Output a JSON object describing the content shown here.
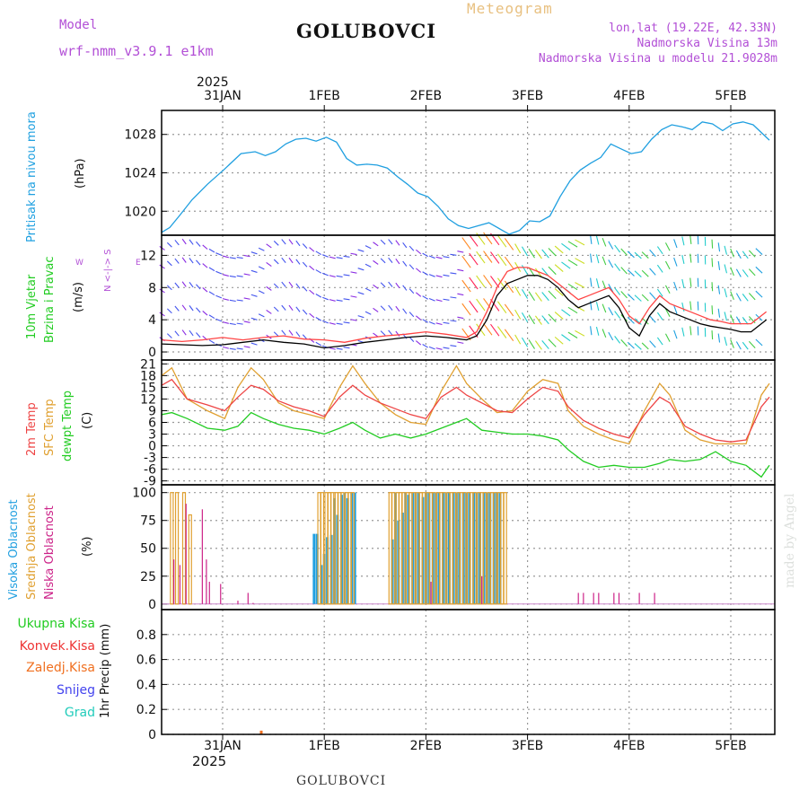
{
  "header": {
    "model_label": "Model",
    "model_name": "wrf-nmm_v3.9.1  e1km",
    "station": "GOLUBOVCI",
    "product": "Meteogram",
    "lonlat": "lon,lat (19.22E, 42.33N)",
    "altitude": "Nadmorska Visina 13m",
    "model_altitude": "Nadmorska Visina u modelu 21.9028m"
  },
  "footer": {
    "station": "GOLUBOVCI",
    "watermark": "made by Angel"
  },
  "colors": {
    "pressure": "#1f9fe0",
    "wind_speed": "#000000",
    "gust": "#ff4444",
    "temp2m": "#ee4444",
    "sfc": "#e0a030",
    "dew": "#22cc22",
    "high": "#22a0e0",
    "mid": "#e0a030",
    "low": "#cc2288"
  },
  "time_axis": {
    "top_year": "2025",
    "top_labels": [
      "31JAN",
      "1FEB",
      "2FEB",
      "3FEB",
      "4FEB",
      "5FEB"
    ],
    "bottom_labels": [
      "31JAN",
      "1FEB",
      "2FEB",
      "3FEB",
      "4FEB",
      "5FEB"
    ],
    "bottom_year": "2025"
  },
  "panels": {
    "pressure": {
      "label": "Pritisak na nivou mora",
      "unit": "(hPa)"
    },
    "wind": {
      "label_line1": "10m Vjetar",
      "label_line2": "Brzina i Pravac",
      "unit": "(m/s)",
      "compass": "N <-|-> S",
      "compass_w": "W",
      "compass_e": "E"
    },
    "temp": {
      "label1": "2m Temp",
      "label2": "SFC Temp",
      "label3": "dewpt Temp",
      "unit": "(C)"
    },
    "cloud": {
      "label1": "Visoka Oblacnost",
      "label2": "Srednja Oblacnost",
      "label3": "Niska Oblacnost",
      "unit": "(%)"
    },
    "precip": {
      "unit": "1hr Precip (mm)",
      "legend": [
        "Ukupna Kisa",
        "Konvek.Kisa",
        "Zaledj.Kisa",
        "Snijeg",
        "Grad"
      ],
      "legend_colors": [
        "#22cc22",
        "#ee3333",
        "#f07020",
        "#4444ee",
        "#22ccbb"
      ]
    }
  },
  "chart_data": [
    {
      "type": "line",
      "title": "Pritisak na nivou mora",
      "ylabel": "(hPa)",
      "ylim": [
        1017.5,
        1030.5
      ],
      "yticks": [
        1020,
        1024,
        1028
      ],
      "x_days": [
        0,
        0.08,
        0.18,
        0.3,
        0.45,
        0.62,
        0.78,
        0.92,
        1.02,
        1.12,
        1.22,
        1.32,
        1.42,
        1.52,
        1.62,
        1.72,
        1.82,
        1.92,
        2.02,
        2.12,
        2.22,
        2.32,
        2.42,
        2.52,
        2.62,
        2.72,
        2.82,
        2.92,
        3.02,
        3.12,
        3.22,
        3.32,
        3.42,
        3.52,
        3.62,
        3.72,
        3.82,
        3.92,
        4.02,
        4.12,
        4.22,
        4.32,
        4.42,
        4.52,
        4.62,
        4.72,
        4.82,
        4.92,
        5.02,
        5.12,
        5.22,
        5.32,
        5.42,
        5.52,
        5.62,
        5.72,
        5.82,
        5.98
      ],
      "series": [
        {
          "values": [
            1017.8,
            1018.3,
            1019.6,
            1021.2,
            1022.8,
            1024.4,
            1026.0,
            1026.2,
            1025.8,
            1026.2,
            1027.0,
            1027.5,
            1027.6,
            1027.3,
            1027.7,
            1027.2,
            1025.5,
            1024.8,
            1024.9,
            1024.8,
            1024.5,
            1023.6,
            1022.8,
            1021.9,
            1021.5,
            1020.5,
            1019.2,
            1018.5,
            1018.2,
            1018.5,
            1018.8,
            1018.2,
            1017.6,
            1018.0,
            1019.0,
            1018.9,
            1019.5,
            1021.5,
            1023.2,
            1024.3,
            1025.0,
            1025.6,
            1027.0,
            1026.5,
            1026.0,
            1026.2,
            1027.5,
            1028.5,
            1029.0,
            1028.8,
            1028.5,
            1029.3,
            1029.1,
            1028.4,
            1029.1,
            1029.3,
            1029.0,
            1027.4
          ]
        }
      ]
    },
    {
      "type": "line",
      "title": "10m Vjetar Brzina i Pravac",
      "ylabel": "(m/s)",
      "ylim": [
        -1,
        14.5
      ],
      "yticks": [
        0,
        4,
        8,
        12
      ],
      "x_days": [
        0,
        0.2,
        0.4,
        0.6,
        0.8,
        1.0,
        1.2,
        1.4,
        1.6,
        1.8,
        2.0,
        2.2,
        2.4,
        2.6,
        2.8,
        3.0,
        3.1,
        3.2,
        3.3,
        3.4,
        3.5,
        3.6,
        3.7,
        3.8,
        3.9,
        4.0,
        4.1,
        4.2,
        4.3,
        4.4,
        4.5,
        4.6,
        4.7,
        4.8,
        4.9,
        5.0,
        5.1,
        5.2,
        5.3,
        5.4,
        5.5,
        5.6,
        5.7,
        5.8,
        5.95
      ],
      "series": [
        {
          "values": [
            1.0,
            0.9,
            0.8,
            0.9,
            1.2,
            1.5,
            1.2,
            1.0,
            0.5,
            0.8,
            1.2,
            1.5,
            1.8,
            2.0,
            1.8,
            1.5,
            2.0,
            4.0,
            7.0,
            8.5,
            9.0,
            9.5,
            9.5,
            9.0,
            8.0,
            6.5,
            5.5,
            6.0,
            6.5,
            7.0,
            5.5,
            3.0,
            2.0,
            4.5,
            6.0,
            5.0,
            4.5,
            4.0,
            3.5,
            3.2,
            3.0,
            2.8,
            2.5,
            2.5,
            4.0
          ]
        },
        {
          "values": [
            1.5,
            1.3,
            1.5,
            1.8,
            1.5,
            1.8,
            2.0,
            1.6,
            1.5,
            1.2,
            1.7,
            2.0,
            2.2,
            2.5,
            2.2,
            1.8,
            2.5,
            5.0,
            8.0,
            10.0,
            10.5,
            10.5,
            10.0,
            9.5,
            8.5,
            7.5,
            6.5,
            7.0,
            7.5,
            8.0,
            6.5,
            4.5,
            3.5,
            5.5,
            7.0,
            6.0,
            5.5,
            5.0,
            4.5,
            4.0,
            3.8,
            3.5,
            3.5,
            3.5,
            5.0
          ]
        }
      ]
    },
    {
      "type": "line",
      "title": "2m Temp / SFC Temp / dewpt Temp",
      "ylabel": "(C)",
      "ylim": [
        -10,
        22
      ],
      "yticks": [
        -9,
        -6,
        -3,
        0,
        3,
        6,
        9,
        12,
        15,
        18,
        21
      ],
      "x_days": [
        0,
        0.1,
        0.25,
        0.45,
        0.62,
        0.75,
        0.88,
        1.0,
        1.15,
        1.3,
        1.45,
        1.6,
        1.75,
        1.88,
        2.0,
        2.15,
        2.3,
        2.45,
        2.6,
        2.75,
        2.9,
        3.0,
        3.15,
        3.3,
        3.45,
        3.6,
        3.75,
        3.9,
        4.0,
        4.15,
        4.3,
        4.45,
        4.6,
        4.75,
        4.9,
        5.0,
        5.15,
        5.3,
        5.45,
        5.6,
        5.75,
        5.9,
        5.98
      ],
      "series": [
        {
          "name": "2m Temp",
          "values": [
            15.5,
            17.0,
            12.0,
            10.5,
            9.0,
            12.5,
            15.5,
            14.5,
            11.5,
            10.0,
            9.0,
            7.5,
            12.5,
            15.5,
            13.0,
            11.0,
            9.5,
            8.0,
            7.0,
            12.5,
            15.0,
            13.0,
            11.0,
            9.0,
            8.5,
            12.0,
            15.0,
            14.0,
            10.0,
            6.5,
            4.5,
            3.0,
            2.0,
            8.0,
            12.5,
            11.0,
            5.0,
            3.0,
            1.5,
            1.0,
            1.5,
            10.0,
            12.5
          ]
        },
        {
          "name": "SFC Temp",
          "values": [
            18.0,
            20.0,
            12.0,
            9.0,
            7.0,
            15.0,
            20.0,
            17.0,
            11.0,
            9.0,
            8.0,
            7.0,
            15.0,
            20.5,
            16.0,
            11.0,
            8.0,
            6.0,
            5.5,
            14.0,
            20.5,
            16.0,
            12.0,
            8.5,
            9.0,
            14.0,
            17.0,
            16.0,
            9.0,
            5.0,
            3.0,
            1.5,
            0.5,
            9.0,
            16.0,
            13.0,
            4.0,
            1.5,
            0.5,
            0.5,
            0.5,
            13.0,
            16.0
          ]
        },
        {
          "name": "dewpt Temp",
          "values": [
            8.0,
            8.5,
            7.0,
            4.5,
            4.0,
            5.0,
            8.5,
            7.0,
            5.5,
            4.5,
            4.0,
            3.0,
            4.5,
            6.0,
            4.0,
            2.0,
            3.0,
            2.0,
            3.0,
            4.5,
            6.0,
            7.0,
            4.0,
            3.5,
            3.0,
            3.0,
            2.5,
            1.5,
            -1.0,
            -4.0,
            -5.5,
            -5.0,
            -5.5,
            -5.5,
            -4.5,
            -3.5,
            -4.0,
            -3.5,
            -1.5,
            -4.0,
            -5.0,
            -8.0,
            -5.0
          ]
        }
      ]
    },
    {
      "type": "bar",
      "title": "Oblacnost",
      "ylabel": "(%)",
      "ylim": [
        -5,
        107
      ],
      "yticks": [
        0,
        25,
        50,
        75,
        100
      ],
      "series": [
        {
          "name": "Visoka Oblacnost",
          "x_days": [
            1.5,
            1.53,
            1.57,
            1.6,
            1.63,
            1.67,
            1.7,
            1.73,
            1.77,
            1.8,
            1.83,
            1.87,
            1.9,
            2.27,
            2.3,
            2.33,
            2.37,
            2.4,
            2.43,
            2.47,
            2.5,
            2.53,
            2.57,
            2.6,
            2.63,
            2.67,
            2.7,
            2.73,
            2.77,
            2.8,
            2.83,
            2.87,
            2.9,
            2.93,
            2.97,
            3.0,
            3.03,
            3.07,
            3.1,
            3.13,
            3.17,
            3.2,
            3.23,
            3.27,
            3.3,
            3.33
          ],
          "values": [
            63,
            63,
            35,
            45,
            60,
            62,
            95,
            80,
            98,
            100,
            95,
            100,
            100,
            58,
            100,
            75,
            82,
            100,
            98,
            100,
            100,
            100,
            96,
            100,
            100,
            100,
            100,
            100,
            100,
            100,
            100,
            100,
            100,
            100,
            100,
            100,
            100,
            100,
            100,
            100,
            100,
            100,
            100,
            100,
            100,
            100
          ]
        },
        {
          "name": "Srednja Oblacnost",
          "x_days": [
            0.1,
            0.15,
            0.22,
            0.28,
            1.55,
            1.58,
            1.62,
            1.65,
            1.68,
            1.72,
            1.75,
            1.78,
            1.82,
            1.85,
            1.88,
            2.25,
            2.28,
            2.32,
            2.35,
            2.38,
            2.42,
            2.45,
            2.48,
            2.52,
            2.55,
            2.58,
            2.62,
            2.65,
            2.68,
            2.72,
            2.75,
            2.78,
            2.82,
            2.85,
            2.88,
            2.92,
            2.95,
            2.98,
            3.02,
            3.05,
            3.08,
            3.12,
            3.15,
            3.18,
            3.22,
            3.25,
            3.28,
            3.32,
            3.35,
            3.38
          ],
          "values": [
            100,
            100,
            100,
            80,
            100,
            100,
            100,
            100,
            100,
            100,
            100,
            100,
            100,
            100,
            100,
            100,
            100,
            100,
            100,
            100,
            100,
            100,
            100,
            100,
            100,
            100,
            100,
            100,
            100,
            100,
            100,
            100,
            100,
            100,
            100,
            100,
            100,
            100,
            100,
            100,
            100,
            100,
            100,
            100,
            100,
            100,
            100,
            100,
            100,
            100
          ]
        },
        {
          "name": "Niska Oblacnost",
          "x_days": [
            0.12,
            0.18,
            0.24,
            0.4,
            0.44,
            0.47,
            0.58,
            0.75,
            0.85,
            0.9,
            2.65,
            3.15,
            4.1,
            4.15,
            4.25,
            4.3,
            4.45,
            4.5,
            4.7,
            4.85
          ],
          "values": [
            40,
            35,
            90,
            85,
            40,
            20,
            18,
            3,
            10,
            1,
            20,
            25,
            10,
            10,
            10,
            10,
            10,
            10,
            10,
            10
          ]
        }
      ]
    },
    {
      "type": "bar",
      "title": "1hr Precip",
      "ylabel": "1hr Precip (mm)",
      "ylim": [
        0,
        1.0
      ],
      "yticks": [
        0,
        0.2,
        0.4,
        0.6,
        0.8
      ],
      "series": [
        {
          "name": "Zaledj.Kisa",
          "x_days": [
            0.98
          ],
          "values": [
            0.03
          ]
        }
      ]
    }
  ]
}
